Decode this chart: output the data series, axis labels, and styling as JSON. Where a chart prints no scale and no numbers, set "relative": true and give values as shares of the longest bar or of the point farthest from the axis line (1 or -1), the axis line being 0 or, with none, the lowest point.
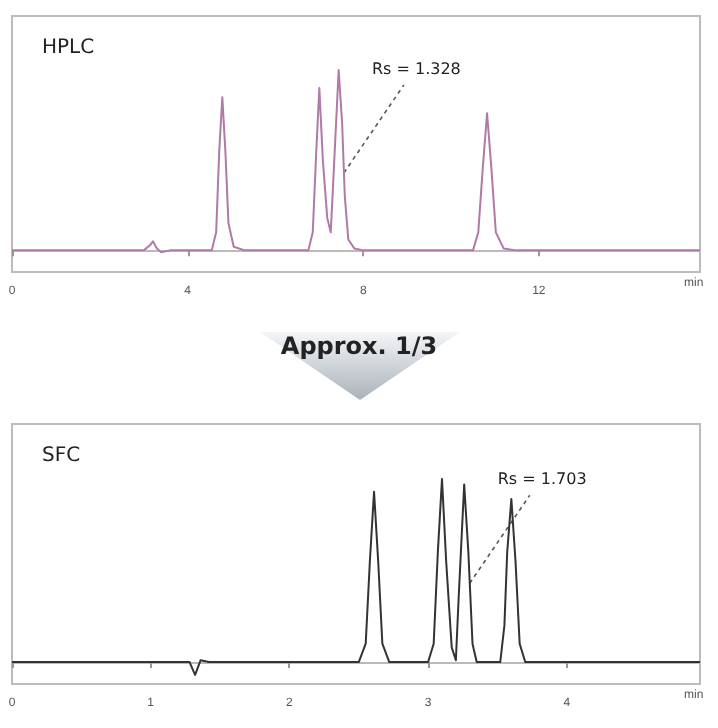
{
  "chart_data": [
    {
      "type": "line",
      "title": "HPLC",
      "xlabel": "min",
      "relative": true,
      "xlim": [
        0,
        15.67
      ],
      "xticks": [
        0,
        4,
        8,
        12
      ],
      "series": [
        {
          "color": "#b07aa8",
          "x": [
            0,
            3.0,
            3.15,
            3.21,
            3.3,
            3.4,
            3.6,
            4.55,
            4.65,
            4.72,
            4.79,
            4.86,
            4.93,
            5.05,
            5.3,
            6.75,
            6.85,
            6.93,
            7.0,
            7.08,
            7.18,
            7.26,
            7.33,
            7.44,
            7.52,
            7.58,
            7.66,
            7.8,
            8.0,
            10.5,
            10.62,
            10.72,
            10.82,
            10.92,
            11.02,
            11.2,
            11.5,
            15.67
          ],
          "values": [
            0,
            0,
            0.03,
            0.05,
            0.01,
            -0.01,
            0,
            0,
            0.1,
            0.55,
            0.85,
            0.55,
            0.15,
            0.02,
            0,
            0,
            0.1,
            0.55,
            0.9,
            0.5,
            0.18,
            0.1,
            0.45,
            1.0,
            0.7,
            0.3,
            0.06,
            0.01,
            0,
            0,
            0.1,
            0.45,
            0.76,
            0.45,
            0.1,
            0.01,
            0,
            0
          ]
        }
      ],
      "annotations": [
        {
          "text": "Rs = 1.328",
          "x": 7.56,
          "y": 0.43
        }
      ]
    },
    {
      "type": "other",
      "title": "Approx. 1/3"
    },
    {
      "type": "line",
      "title": "SFC",
      "xlabel": "min",
      "relative": true,
      "xlim": [
        0,
        4.96
      ],
      "xticks": [
        0,
        1,
        2,
        3,
        4
      ],
      "series": [
        {
          "color": "#333333",
          "x": [
            0,
            1.28,
            1.32,
            1.36,
            1.42,
            2.5,
            2.55,
            2.58,
            2.61,
            2.64,
            2.67,
            2.72,
            3.0,
            3.04,
            3.07,
            3.1,
            3.13,
            3.17,
            3.2,
            3.22,
            3.26,
            3.29,
            3.32,
            3.35,
            3.52,
            3.55,
            3.57,
            3.6,
            3.63,
            3.66,
            3.7,
            4.96
          ],
          "values": [
            0,
            0,
            -0.07,
            0.01,
            0,
            0,
            0.1,
            0.55,
            0.93,
            0.55,
            0.1,
            0,
            0,
            0.1,
            0.6,
            1.0,
            0.55,
            0.08,
            0.01,
            0.35,
            0.97,
            0.6,
            0.1,
            0,
            0,
            0.2,
            0.6,
            0.89,
            0.55,
            0.1,
            0,
            0
          ]
        }
      ],
      "annotations": [
        {
          "text": "Rs = 1.703",
          "x": 3.3,
          "y": 0.43
        }
      ]
    }
  ]
}
